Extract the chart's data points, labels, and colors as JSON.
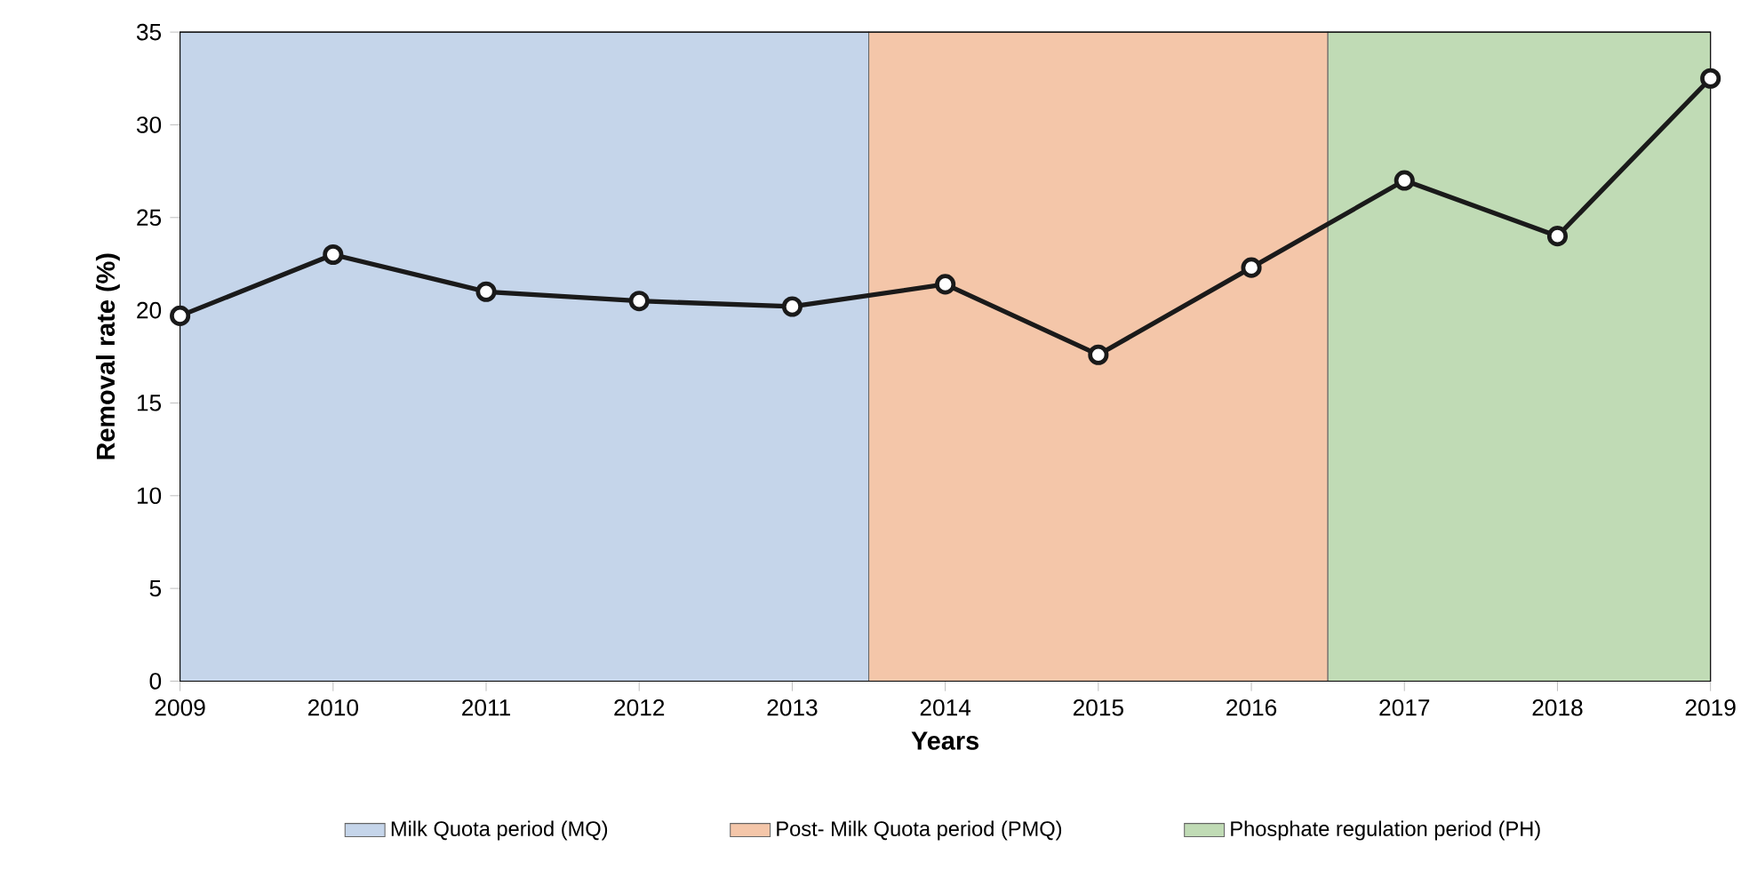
{
  "chart_data": {
    "type": "line",
    "xlabel": "Years",
    "ylabel": "Removal rate (%)",
    "x": [
      2009,
      2010,
      2011,
      2012,
      2013,
      2014,
      2015,
      2016,
      2017,
      2018,
      2019
    ],
    "series": [
      {
        "color": "#1a1a1a",
        "values": [
          19.7,
          23.0,
          21.0,
          20.5,
          20.2,
          21.4,
          17.6,
          22.3,
          27.0,
          24.0,
          32.5
        ]
      }
    ],
    "xlim": [
      2009,
      2019
    ],
    "xticks": [
      2009,
      2010,
      2011,
      2012,
      2013,
      2014,
      2015,
      2016,
      2017,
      2018,
      2019
    ],
    "ylim": [
      0,
      35
    ],
    "yticks": [
      0,
      5,
      10,
      15,
      20,
      25,
      30,
      35
    ],
    "bands": [
      {
        "axis": "x",
        "from": 2009,
        "to": 2013.5,
        "label": "Milk Quota period (MQ)",
        "color": "#c5d5ea"
      },
      {
        "axis": "x",
        "from": 2013.5,
        "to": 2016.5,
        "label": "Post- Milk Quota period (PMQ)",
        "color": "#f4c6a9"
      },
      {
        "axis": "x",
        "from": 2016.5,
        "to": 2019,
        "label": "Phosphate regulation period (PH)",
        "color": "#c0dbb5"
      }
    ],
    "marker": "circle",
    "line_style": "solid",
    "legend": "bottom",
    "grid": false
  }
}
